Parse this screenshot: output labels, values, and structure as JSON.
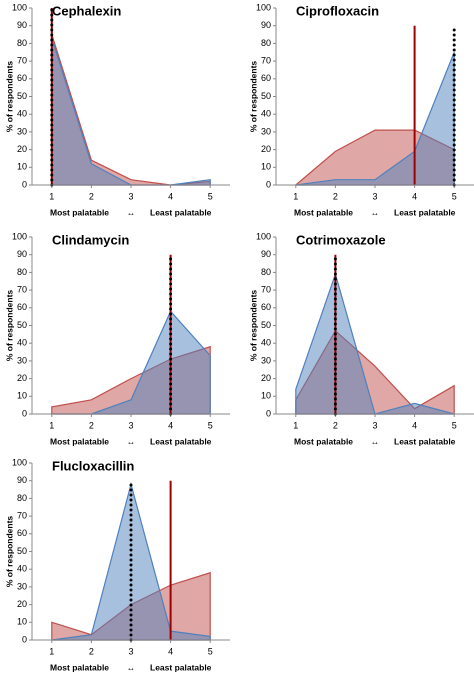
{
  "chart_data": [
    {
      "type": "area",
      "title": "Cephalexin",
      "y_label": "% of respondents",
      "x_label_left": "Most palatable",
      "x_label_arrow": "↔",
      "x_label_right": "Least palatable",
      "x": [
        1,
        2,
        3,
        4,
        5
      ],
      "xlim": [
        0.5,
        5.5
      ],
      "xticks": [
        1,
        2,
        3,
        4,
        5
      ],
      "ylim": [
        0,
        100
      ],
      "yticks": [
        0,
        10,
        20,
        30,
        40,
        50,
        60,
        70,
        80,
        90,
        100
      ],
      "series": [
        {
          "color": "#c0504d",
          "values": [
            85,
            14,
            3,
            0,
            2
          ]
        },
        {
          "color": "#4f81bd",
          "values": [
            83,
            12,
            0,
            0,
            3
          ]
        }
      ],
      "vlines": [
        {
          "x": 1,
          "top": 100,
          "color": "#a00000",
          "dotted": false
        },
        {
          "x": 1,
          "top": 100,
          "color": "#000000",
          "dotted": true
        }
      ]
    },
    {
      "type": "area",
      "title": "Ciprofloxacin",
      "y_label": "% of respondents",
      "x_label_left": "Most palatable",
      "x_label_arrow": "↔",
      "x_label_right": "Least palatable",
      "x": [
        1,
        2,
        3,
        4,
        5
      ],
      "xlim": [
        0.5,
        5.5
      ],
      "xticks": [
        1,
        2,
        3,
        4,
        5
      ],
      "ylim": [
        0,
        100
      ],
      "yticks": [
        0,
        10,
        20,
        30,
        40,
        50,
        60,
        70,
        80,
        90,
        100
      ],
      "series": [
        {
          "color": "#c0504d",
          "values": [
            0,
            19,
            31,
            31,
            20
          ]
        },
        {
          "color": "#4f81bd",
          "values": [
            0,
            3,
            3,
            19,
            75
          ]
        }
      ],
      "vlines": [
        {
          "x": 4,
          "top": 90,
          "color": "#a00000",
          "dotted": false
        },
        {
          "x": 5,
          "top": 90,
          "color": "#000000",
          "dotted": true
        }
      ]
    },
    {
      "type": "area",
      "title": "Clindamycin",
      "y_label": "% of respondents",
      "x_label_left": "Most palatable",
      "x_label_arrow": "↔",
      "x_label_right": "Least palatable",
      "x": [
        1,
        2,
        3,
        4,
        5
      ],
      "xlim": [
        0.5,
        5.5
      ],
      "xticks": [
        1,
        2,
        3,
        4,
        5
      ],
      "ylim": [
        0,
        100
      ],
      "yticks": [
        0,
        10,
        20,
        30,
        40,
        50,
        60,
        70,
        80,
        90,
        100
      ],
      "series": [
        {
          "color": "#c0504d",
          "values": [
            4,
            8,
            20,
            31,
            38
          ]
        },
        {
          "color": "#4f81bd",
          "values": [
            0,
            0,
            8,
            58,
            33
          ]
        }
      ],
      "vlines": [
        {
          "x": 4,
          "top": 90,
          "color": "#a00000",
          "dotted": false
        },
        {
          "x": 4,
          "top": 90,
          "color": "#000000",
          "dotted": true
        }
      ]
    },
    {
      "type": "area",
      "title": "Cotrimoxazole",
      "y_label": "% of respondents",
      "x_label_left": "Most palatable",
      "x_label_arrow": "↔",
      "x_label_right": "Least palatable",
      "x": [
        1,
        2,
        3,
        4,
        5
      ],
      "xlim": [
        0.5,
        5.5
      ],
      "xticks": [
        1,
        2,
        3,
        4,
        5
      ],
      "ylim": [
        0,
        100
      ],
      "yticks": [
        0,
        10,
        20,
        30,
        40,
        50,
        60,
        70,
        80,
        90,
        100
      ],
      "series": [
        {
          "color": "#c0504d",
          "values": [
            8,
            47,
            27,
            3,
            16
          ]
        },
        {
          "color": "#4f81bd",
          "values": [
            14,
            79,
            0,
            6,
            0
          ]
        }
      ],
      "vlines": [
        {
          "x": 2,
          "top": 90,
          "color": "#a00000",
          "dotted": false
        },
        {
          "x": 2,
          "top": 90,
          "color": "#000000",
          "dotted": true
        }
      ]
    },
    {
      "type": "area",
      "title": "Flucloxacillin",
      "y_label": "% of respondents",
      "x_label_left": "Most palatable",
      "x_label_arrow": "↔",
      "x_label_right": "Least palatable",
      "x": [
        1,
        2,
        3,
        4,
        5
      ],
      "xlim": [
        0.5,
        5.5
      ],
      "xticks": [
        1,
        2,
        3,
        4,
        5
      ],
      "ylim": [
        0,
        100
      ],
      "yticks": [
        0,
        10,
        20,
        30,
        40,
        50,
        60,
        70,
        80,
        90,
        100
      ],
      "series": [
        {
          "color": "#c0504d",
          "values": [
            10,
            3,
            20,
            31,
            38
          ]
        },
        {
          "color": "#4f81bd",
          "values": [
            0,
            3,
            88,
            5,
            2
          ]
        }
      ],
      "vlines": [
        {
          "x": 4,
          "top": 90,
          "color": "#a00000",
          "dotted": false
        },
        {
          "x": 3,
          "top": 88,
          "color": "#000000",
          "dotted": true
        }
      ]
    }
  ]
}
